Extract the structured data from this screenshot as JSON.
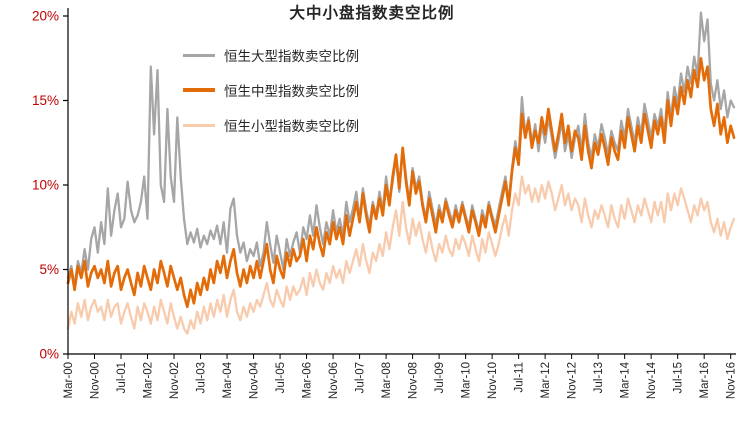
{
  "title": "大中小盘指数卖空比例",
  "colors": {
    "title": "#262626",
    "axis_line": "#000000",
    "axis_label_y": "#c00000",
    "axis_label_x": "#262626",
    "background": "#ffffff"
  },
  "legend": {
    "position": "top-left-inside"
  },
  "chart_data": {
    "type": "line",
    "title": "大中小盘指数卖空比例",
    "x_unit": "month",
    "x_start": "Mar-00",
    "x_end": "Dec-16",
    "grid": false,
    "legend_position": "top-left-inside",
    "ylim": [
      0,
      20
    ],
    "y_tick_values": [
      0,
      5,
      10,
      15,
      20
    ],
    "y_tick_labels": [
      "0%",
      "5%",
      "10%",
      "15%",
      "20%"
    ],
    "x_tick_positions": [
      0,
      8,
      16,
      24,
      32,
      40,
      48,
      56,
      64,
      72,
      80,
      88,
      96,
      104,
      112,
      120,
      128,
      136,
      144,
      152,
      160,
      168,
      176,
      184,
      192,
      200
    ],
    "x_tick_labels": [
      "Mar-00",
      "Nov-00",
      "Jul-01",
      "Mar-02",
      "Nov-02",
      "Jul-03",
      "Mar-04",
      "Nov-04",
      "Jul-05",
      "Mar-06",
      "Nov-06",
      "Jul-07",
      "Mar-08",
      "Nov-08",
      "Jul-09",
      "Mar-10",
      "Nov-10",
      "Jul-11",
      "Mar-12",
      "Nov-12",
      "Jul-13",
      "Mar-14",
      "Nov-14",
      "Jul-15",
      "Mar-16",
      "Nov-16"
    ],
    "series": [
      {
        "name": "恒生大型指数卖空比例",
        "color": "#a6a6a6",
        "width": 2.3,
        "values": [
          4.5,
          5.2,
          4.0,
          5.5,
          4.8,
          6.2,
          5.0,
          6.8,
          7.5,
          6.0,
          7.8,
          6.5,
          9.8,
          7.0,
          8.5,
          9.5,
          7.5,
          8.0,
          10.2,
          8.5,
          7.8,
          8.2,
          9.0,
          10.5,
          8.0,
          17.0,
          13.0,
          16.8,
          10.0,
          9.0,
          14.5,
          10.5,
          9.0,
          14.0,
          10.5,
          8.0,
          6.5,
          7.2,
          6.6,
          7.4,
          6.3,
          7.0,
          6.5,
          7.3,
          6.8,
          7.6,
          6.5,
          7.8,
          6.0,
          8.6,
          9.2,
          7.0,
          6.0,
          6.6,
          5.5,
          6.2,
          5.8,
          6.6,
          5.2,
          6.0,
          7.8,
          6.5,
          5.4,
          7.0,
          6.0,
          5.0,
          6.8,
          5.8,
          6.6,
          7.2,
          6.0,
          7.5,
          6.8,
          8.2,
          7.0,
          8.8,
          7.5,
          6.5,
          7.8,
          7.0,
          8.5,
          7.2,
          8.0,
          7.0,
          9.0,
          7.8,
          8.6,
          9.6,
          8.0,
          9.8,
          8.5,
          7.6,
          9.0,
          8.2,
          9.6,
          8.5,
          10.5,
          9.0,
          10.2,
          11.6,
          9.6,
          12.2,
          10.5,
          9.0,
          11.0,
          9.8,
          10.5,
          9.0,
          8.0,
          9.6,
          8.6,
          7.6,
          8.8,
          8.0,
          9.2,
          8.5,
          7.8,
          8.8,
          8.0,
          9.0,
          8.2,
          7.5,
          8.8,
          8.0,
          7.2,
          8.5,
          7.8,
          9.0,
          8.2,
          7.6,
          8.6,
          9.6,
          10.5,
          9.0,
          11.0,
          12.6,
          11.5,
          15.2,
          13.0,
          14.0,
          12.5,
          13.6,
          12.0,
          13.6,
          12.5,
          14.0,
          12.8,
          11.6,
          12.6,
          13.8,
          12.0,
          13.0,
          11.6,
          12.8,
          13.5,
          12.0,
          14.2,
          12.5,
          11.6,
          13.0,
          12.2,
          13.6,
          12.8,
          11.8,
          13.2,
          12.5,
          12.0,
          13.8,
          12.8,
          14.5,
          13.5,
          12.5,
          14.0,
          13.0,
          14.8,
          13.8,
          12.8,
          14.2,
          13.5,
          14.5,
          13.0,
          15.5,
          14.0,
          15.8,
          14.8,
          16.6,
          15.5,
          17.0,
          16.0,
          17.6,
          16.5,
          20.2,
          18.5,
          19.8,
          16.0,
          15.0,
          16.2,
          14.5,
          15.6,
          14.0,
          15.0,
          14.6
        ]
      },
      {
        "name": "恒生中型指数卖空比例",
        "color": "#e36c09",
        "width": 2.7,
        "values": [
          4.2,
          5.0,
          3.8,
          5.2,
          4.5,
          5.5,
          4.0,
          4.8,
          5.2,
          4.5,
          5.0,
          4.2,
          5.5,
          4.0,
          4.8,
          5.2,
          3.8,
          4.5,
          5.0,
          4.2,
          3.5,
          4.8,
          4.0,
          5.2,
          4.5,
          3.8,
          5.0,
          4.2,
          5.5,
          4.8,
          4.0,
          5.2,
          4.5,
          3.8,
          4.5,
          3.5,
          2.8,
          3.8,
          3.0,
          4.2,
          3.5,
          4.5,
          3.8,
          5.0,
          4.2,
          5.5,
          4.8,
          5.8,
          4.5,
          5.5,
          6.2,
          4.8,
          4.0,
          5.0,
          4.2,
          5.2,
          4.5,
          5.5,
          4.5,
          5.5,
          6.5,
          5.0,
          4.2,
          5.8,
          5.0,
          4.5,
          6.0,
          5.2,
          6.2,
          5.5,
          5.8,
          6.8,
          5.5,
          7.0,
          6.2,
          7.5,
          6.5,
          5.8,
          7.2,
          6.5,
          7.8,
          6.8,
          7.5,
          6.5,
          8.2,
          7.0,
          8.0,
          9.0,
          7.8,
          9.5,
          8.2,
          7.2,
          8.8,
          8.0,
          9.2,
          8.2,
          10.0,
          8.8,
          10.5,
          11.8,
          9.8,
          12.2,
          10.2,
          8.8,
          10.8,
          9.5,
          10.2,
          8.8,
          7.8,
          9.2,
          8.2,
          7.2,
          8.5,
          7.8,
          9.0,
          8.2,
          7.5,
          8.5,
          7.8,
          8.8,
          8.0,
          7.2,
          8.5,
          7.8,
          7.0,
          8.2,
          7.5,
          8.8,
          8.0,
          7.2,
          8.2,
          9.2,
          10.2,
          8.8,
          10.8,
          12.2,
          11.2,
          14.2,
          12.8,
          13.8,
          12.2,
          13.2,
          12.5,
          14.0,
          13.0,
          14.5,
          13.2,
          12.0,
          13.0,
          14.2,
          12.5,
          13.5,
          12.0,
          13.2,
          12.8,
          11.5,
          13.5,
          12.0,
          11.0,
          12.5,
          11.8,
          13.0,
          12.2,
          11.2,
          12.8,
          12.0,
          11.5,
          13.2,
          12.2,
          14.0,
          13.0,
          12.0,
          13.5,
          12.5,
          14.2,
          13.2,
          12.2,
          13.8,
          13.0,
          14.0,
          12.5,
          15.0,
          13.5,
          15.2,
          14.2,
          15.8,
          14.8,
          16.2,
          15.2,
          16.8,
          15.8,
          17.5,
          16.2,
          17.0,
          14.5,
          13.5,
          14.8,
          13.0,
          14.0,
          12.5,
          13.5,
          12.8
        ]
      },
      {
        "name": "恒生小型指数卖空比例",
        "color": "#f8cbad",
        "width": 2.3,
        "values": [
          1.5,
          2.5,
          1.8,
          3.0,
          2.2,
          3.2,
          2.0,
          2.8,
          3.2,
          2.5,
          2.8,
          2.0,
          3.2,
          2.2,
          2.8,
          3.0,
          1.8,
          2.5,
          3.0,
          2.2,
          1.5,
          2.8,
          2.0,
          3.0,
          2.5,
          1.8,
          2.8,
          2.0,
          3.2,
          2.5,
          1.8,
          3.0,
          2.2,
          1.5,
          2.2,
          1.5,
          1.2,
          2.0,
          1.5,
          2.5,
          1.8,
          2.8,
          2.0,
          3.0,
          2.2,
          3.2,
          2.5,
          3.5,
          2.2,
          3.2,
          3.8,
          2.5,
          2.0,
          2.8,
          2.2,
          3.0,
          2.5,
          3.2,
          2.8,
          3.5,
          4.2,
          3.2,
          2.8,
          3.8,
          3.2,
          2.8,
          4.0,
          3.2,
          4.0,
          3.5,
          3.8,
          4.5,
          3.5,
          4.8,
          4.0,
          5.0,
          4.2,
          3.8,
          4.8,
          4.2,
          5.2,
          4.5,
          5.0,
          4.2,
          5.5,
          4.8,
          5.5,
          6.2,
          5.2,
          6.5,
          5.5,
          4.8,
          6.0,
          5.5,
          6.5,
          5.8,
          7.2,
          6.2,
          7.5,
          8.5,
          7.0,
          9.0,
          7.5,
          6.5,
          8.0,
          7.0,
          7.8,
          6.8,
          6.0,
          7.2,
          6.2,
          5.5,
          6.5,
          6.0,
          7.0,
          6.2,
          5.8,
          6.8,
          6.2,
          7.0,
          6.5,
          5.8,
          7.0,
          6.2,
          5.5,
          6.8,
          6.0,
          7.2,
          6.5,
          5.8,
          6.5,
          7.5,
          8.2,
          7.0,
          8.5,
          9.5,
          8.8,
          10.5,
          9.5,
          10.0,
          9.0,
          9.8,
          9.0,
          10.0,
          9.2,
          10.2,
          9.5,
          8.5,
          9.2,
          10.0,
          8.8,
          9.5,
          8.5,
          9.2,
          8.8,
          7.8,
          9.2,
          8.2,
          7.5,
          8.5,
          8.0,
          8.8,
          8.2,
          7.5,
          8.8,
          8.0,
          7.5,
          8.8,
          8.0,
          9.2,
          8.5,
          7.8,
          8.8,
          8.2,
          9.2,
          8.5,
          7.8,
          9.0,
          8.2,
          9.0,
          7.8,
          9.5,
          8.5,
          9.5,
          8.8,
          9.8,
          9.2,
          8.5,
          7.8,
          8.8,
          8.2,
          9.2,
          8.5,
          9.0,
          7.8,
          7.2,
          8.0,
          7.0,
          7.8,
          6.8,
          7.5,
          8.0
        ]
      }
    ]
  }
}
